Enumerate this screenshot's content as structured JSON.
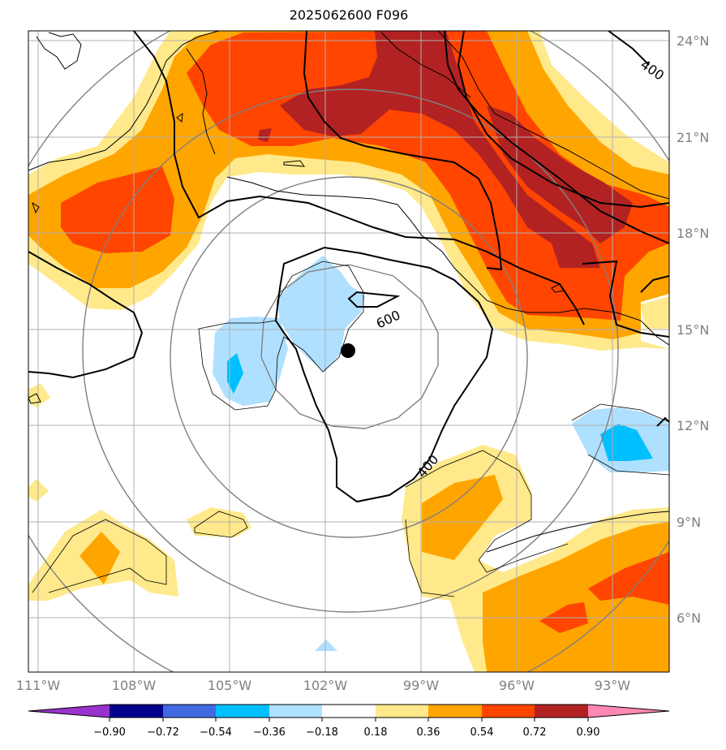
{
  "title": "2025062600 F096",
  "lat_axis": [
    "24°N",
    "21°N",
    "18°N",
    "15°N",
    "12°N",
    "9°N",
    "6°N"
  ],
  "lon_axis": [
    "111°W",
    "108°W",
    "105°W",
    "102°W",
    "99°W",
    "96°W",
    "93°W"
  ],
  "contour_labels": [
    "400",
    "600",
    "400"
  ],
  "colorbar": {
    "ticks": [
      "−0.90",
      "−0.72",
      "−0.54",
      "−0.36",
      "−0.18",
      "0.18",
      "0.36",
      "0.54",
      "0.72",
      "0.90"
    ],
    "colors": [
      "#9932cc",
      "#00008b",
      "#4169e1",
      "#00bfff",
      "#b0e0ff",
      "#ffffff",
      "#ffe98a",
      "#ffa500",
      "#ff4500",
      "#b22222",
      "#ff88b4"
    ]
  },
  "colors": {
    "yellow": "#ffe98a",
    "orange": "#ffa500",
    "red_orange": "#ff4500",
    "dark_red": "#b22222",
    "light_blue": "#b0e0ff",
    "blue": "#00bfff"
  },
  "storm_center": {
    "lon": -101.3,
    "lat": 14.4
  }
}
